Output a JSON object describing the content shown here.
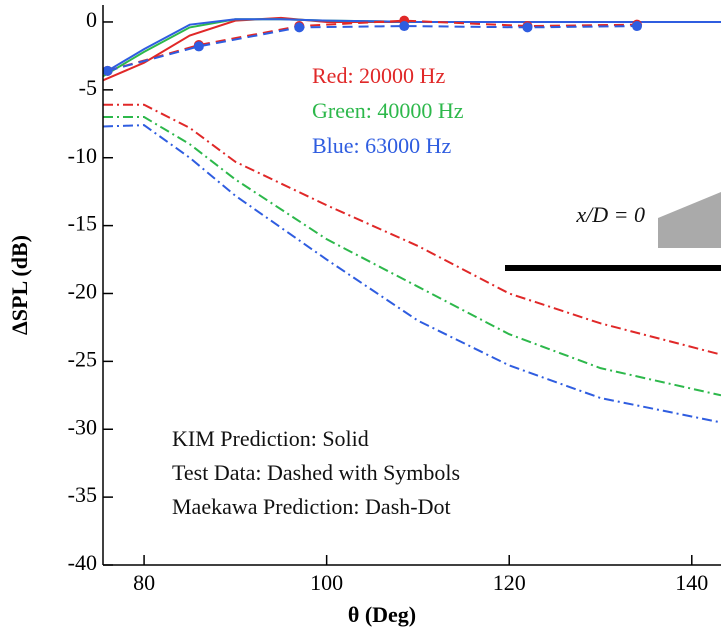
{
  "chart_data": {
    "type": "line",
    "xlabel": "θ (Deg)",
    "ylabel": "ΔSPL (dB)",
    "xlim": [
      75.5,
      143.2
    ],
    "ylim": [
      -40,
      1.25
    ],
    "xticks": [
      80,
      100,
      120,
      140
    ],
    "yticks": [
      0,
      -5,
      -10,
      -15,
      -20,
      -25,
      -30,
      -35,
      -40
    ],
    "grid": false,
    "series": [
      {
        "color": "#e02828",
        "style": "solid",
        "x": [
          75.5,
          80,
          85,
          90,
          95,
          100,
          110,
          143.2
        ],
        "values": [
          -4.3,
          -3.0,
          -1.0,
          0.1,
          0.3,
          0.0,
          0.0,
          0.0
        ]
      },
      {
        "color": "#2db84b",
        "style": "solid",
        "x": [
          75.5,
          80,
          85,
          90,
          95,
          100,
          110,
          143.2
        ],
        "values": [
          -4.0,
          -2.2,
          -0.4,
          0.2,
          0.2,
          0.1,
          0.0,
          0.0
        ]
      },
      {
        "color": "#2f5de0",
        "style": "solid",
        "x": [
          75.5,
          80,
          85,
          90,
          95,
          100,
          110,
          143.2
        ],
        "values": [
          -3.8,
          -2.0,
          -0.2,
          0.2,
          0.2,
          0.1,
          0.0,
          0.0
        ]
      },
      {
        "color": "#e02828",
        "style": "dashed",
        "markers": true,
        "x": [
          76,
          86,
          97,
          108.5,
          122,
          134
        ],
        "values": [
          -3.6,
          -1.7,
          -0.3,
          0.1,
          -0.3,
          -0.2
        ]
      },
      {
        "color": "#2f5de0",
        "style": "dashed",
        "markers": true,
        "x": [
          76,
          86,
          97,
          108.5,
          122,
          134
        ],
        "values": [
          -3.6,
          -1.8,
          -0.4,
          -0.3,
          -0.4,
          -0.3
        ]
      },
      {
        "color": "#e02828",
        "style": "dashdot",
        "x": [
          75.5,
          80,
          85,
          90,
          100,
          110,
          120,
          130,
          143.2
        ],
        "values": [
          -6.1,
          -6.1,
          -7.8,
          -10.3,
          -13.5,
          -16.5,
          -20.0,
          -22.2,
          -24.5
        ]
      },
      {
        "color": "#2db84b",
        "style": "dashdot",
        "x": [
          75.5,
          80,
          85,
          90,
          100,
          110,
          120,
          130,
          143.2
        ],
        "values": [
          -7.0,
          -7.0,
          -9.0,
          -11.6,
          -16.0,
          -19.5,
          -23.0,
          -25.5,
          -27.5
        ]
      },
      {
        "color": "#2f5de0",
        "style": "dashdot",
        "x": [
          75.5,
          80,
          85,
          90,
          100,
          110,
          120,
          130,
          143.2
        ],
        "values": [
          -7.7,
          -7.6,
          -10.0,
          -12.8,
          -17.5,
          -22.0,
          -25.3,
          -27.7,
          -29.5
        ]
      }
    ],
    "annotations": [
      {
        "text": "Red: 20000 Hz",
        "color": "#e02828"
      },
      {
        "text": "Green: 40000 Hz",
        "color": "#2db84b"
      },
      {
        "text": "Blue: 63000 Hz",
        "color": "#2f5de0"
      },
      {
        "text": "KIM Prediction: Solid",
        "color": "#111111"
      },
      {
        "text": "Test Data: Dashed with Symbols",
        "color": "#111111"
      },
      {
        "text": "Maekawa Prediction: Dash-Dot",
        "color": "#111111"
      },
      {
        "text": "x/D = 0",
        "color": "#111111"
      }
    ]
  }
}
